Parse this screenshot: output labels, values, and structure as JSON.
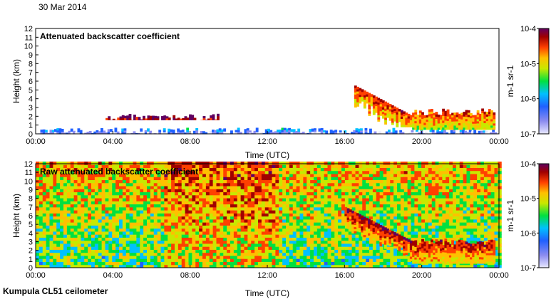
{
  "date_label": "30 Mar 2014",
  "footer_label": "Kumpula CL51 ceilometer",
  "colors": {
    "colormap": [
      "#e8e8ff",
      "#8c8cf0",
      "#2060ff",
      "#00c0ff",
      "#00e040",
      "#c8e800",
      "#ffc000",
      "#ff4000",
      "#a00000",
      "#600060"
    ]
  },
  "chart_data": [
    {
      "type": "heatmap",
      "title": "Attenuated backscatter coefficient",
      "xlabel": "Time (UTC)",
      "ylabel": "Height (km)",
      "x_ticks": [
        "00:00",
        "04:00",
        "08:00",
        "12:00",
        "16:00",
        "20:00",
        "00:00"
      ],
      "y_ticks": [
        "0",
        "1",
        "2",
        "3",
        "4",
        "5",
        "6",
        "7",
        "8",
        "9",
        "10",
        "11",
        "12"
      ],
      "ylim": [
        0,
        12
      ],
      "xlim_hours": [
        0,
        24
      ],
      "colorbar": {
        "ticks": [
          "10-4",
          "10-5",
          "10-6",
          "10-7"
        ],
        "label": "m-1 sr-1",
        "range": [
          1e-07,
          0.0001
        ],
        "scale": "log"
      },
      "layers": [
        {
          "name": "low aerosol layer",
          "start_h": 0,
          "end_h": 24,
          "base_km": 0,
          "top_km": 0.3,
          "level": 0.15
        },
        {
          "name": "aerosol layer",
          "start_h": 3.5,
          "end_h": 9.5,
          "base_km": 1.6,
          "top_km": 1.9,
          "level": 0.85
        },
        {
          "name": "descending cloud",
          "start_h": 16.5,
          "end_h": 19.5,
          "base_km": 5.5,
          "top_km": 2.0,
          "level": 0.6
        },
        {
          "name": "precipitation",
          "start_h": 19.5,
          "end_h": 23.8,
          "base_km": 0.5,
          "top_km": 2.5,
          "level": 0.55
        }
      ]
    },
    {
      "type": "heatmap",
      "title": "Raw attenuated backscatter coefficient",
      "xlabel": "Time (UTC)",
      "ylabel": "Height (km)",
      "x_ticks": [
        "00:00",
        "04:00",
        "08:00",
        "12:00",
        "16:00",
        "20:00",
        "00:00"
      ],
      "y_ticks": [
        "0",
        "1",
        "2",
        "3",
        "4",
        "5",
        "6",
        "7",
        "8",
        "9",
        "10",
        "11",
        "12"
      ],
      "ylim": [
        0,
        12
      ],
      "xlim_hours": [
        0,
        24
      ],
      "colorbar": {
        "ticks": [
          "10-4",
          "10-5",
          "10-6",
          "10-7"
        ],
        "label": "m-1 sr-1",
        "range": [
          1e-07,
          0.0001
        ],
        "scale": "log"
      },
      "layers": [
        {
          "name": "noise",
          "start_h": 0,
          "end_h": 24,
          "base_km": 0,
          "top_km": 12,
          "level": 0.45
        },
        {
          "name": "descending cloud",
          "start_h": 16.0,
          "end_h": 19.5,
          "base_km": 7.0,
          "top_km": 3.0,
          "level": 0.65
        },
        {
          "name": "precipitation",
          "start_h": 19.5,
          "end_h": 23.8,
          "base_km": 0.5,
          "top_km": 3.0,
          "level": 0.6
        }
      ]
    }
  ]
}
